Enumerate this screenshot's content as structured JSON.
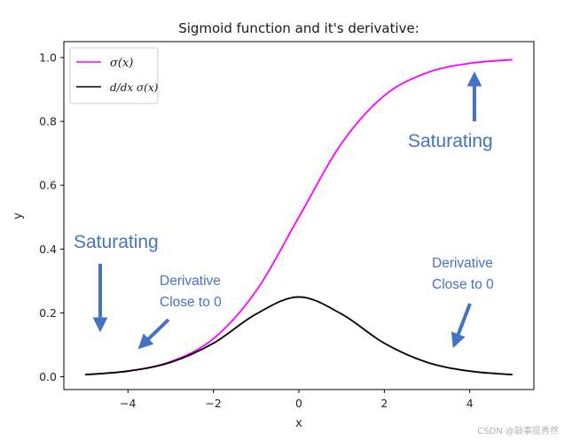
{
  "chart_data": {
    "type": "line",
    "title": "Sigmoid function and it's derivative:",
    "xlabel": "x",
    "ylabel": "y",
    "xlim": [
      -5.5,
      5.5
    ],
    "ylim": [
      -0.04,
      1.05
    ],
    "xticks": [
      -4,
      -2,
      0,
      2,
      4
    ],
    "xtick_labels": [
      "−4",
      "−2",
      "0",
      "2",
      "4"
    ],
    "yticks": [
      0.0,
      0.2,
      0.4,
      0.6,
      0.8,
      1.0
    ],
    "ytick_labels": [
      "0.0",
      "0.2",
      "0.4",
      "0.6",
      "0.8",
      "1.0"
    ],
    "grid": false,
    "legend_position": "top-left",
    "x": [
      -5,
      -4,
      -3,
      -2,
      -1,
      0,
      1,
      2,
      3,
      4,
      5
    ],
    "series": [
      {
        "name": "σ(x)",
        "color": "#ff00ff",
        "values": [
          0.0067,
          0.018,
          0.0474,
          0.1192,
          0.2689,
          0.5,
          0.7311,
          0.8808,
          0.9526,
          0.982,
          0.9933
        ]
      },
      {
        "name": "d/dx σ(x)",
        "color": "#000000",
        "values": [
          0.0066,
          0.0177,
          0.0452,
          0.105,
          0.1966,
          0.25,
          0.1966,
          0.105,
          0.0452,
          0.0177,
          0.0066
        ]
      }
    ],
    "annotations": {
      "saturating_right": "Saturating",
      "saturating_left": "Saturating",
      "derivative_left_line1": "Derivative",
      "derivative_left_line2": "Close to 0",
      "derivative_right_line1": "Derivative",
      "derivative_right_line2": "Close to 0",
      "color": "#4472c4"
    }
  },
  "watermark": "CSDN @敲事挺秀然"
}
